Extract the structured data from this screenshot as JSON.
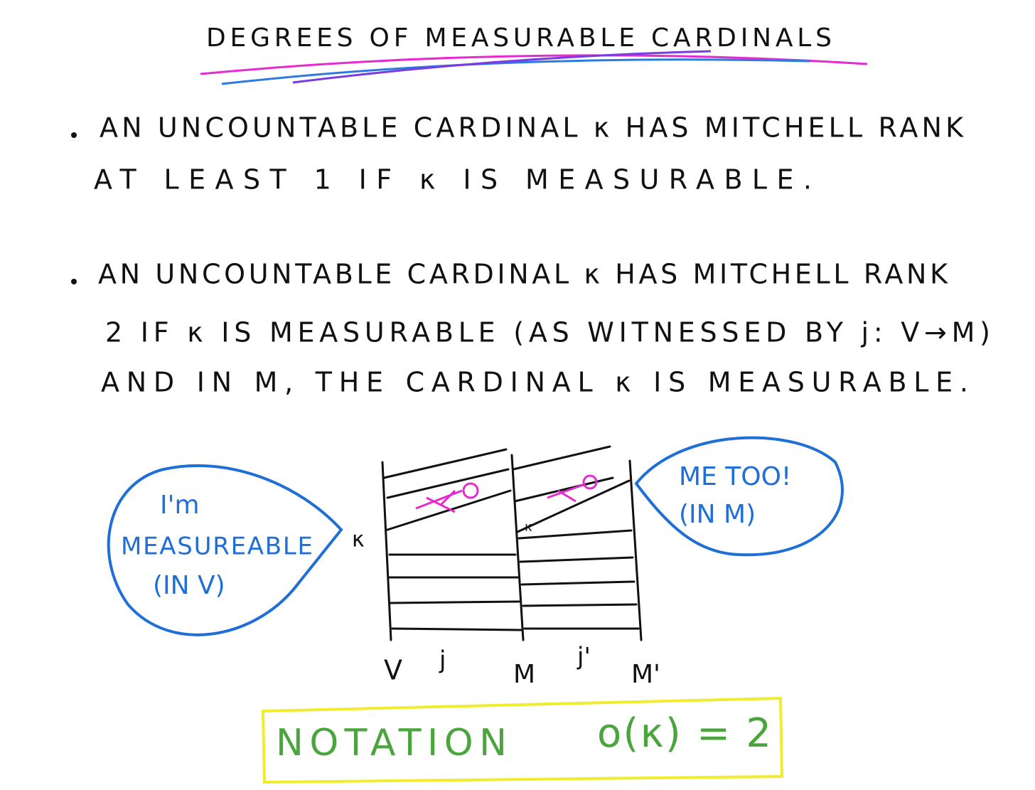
{
  "title": "DEGREES OF MEASURABLE CARDINALS",
  "bullets": [
    {
      "lines": [
        "AN UNCOUNTABLE CARDINAL κ HAS MITCHELL RANK",
        "AT LEAST 1 IF κ IS MEASURABLE."
      ]
    },
    {
      "lines": [
        "AN UNCOUNTABLE CARDINAL κ HAS MITCHELL RANK",
        "2 IF κ IS MEASURABLE (AS WITNESSED BY j: V→M)",
        "AND IN M, THE CARDINAL κ IS MEASURABLE."
      ]
    }
  ],
  "diagram": {
    "left_bubble": [
      "I'm",
      "MEASUREABLE",
      "(IN V)"
    ],
    "right_bubble": [
      "ME TOO!",
      "(IN M)"
    ],
    "kappa_left": "κ",
    "kappa_mid": "κ",
    "labels": [
      "V",
      "j",
      "M",
      "j'",
      "M'"
    ]
  },
  "notation": {
    "label": "NOTATION",
    "formula": "o(κ) = 2"
  }
}
